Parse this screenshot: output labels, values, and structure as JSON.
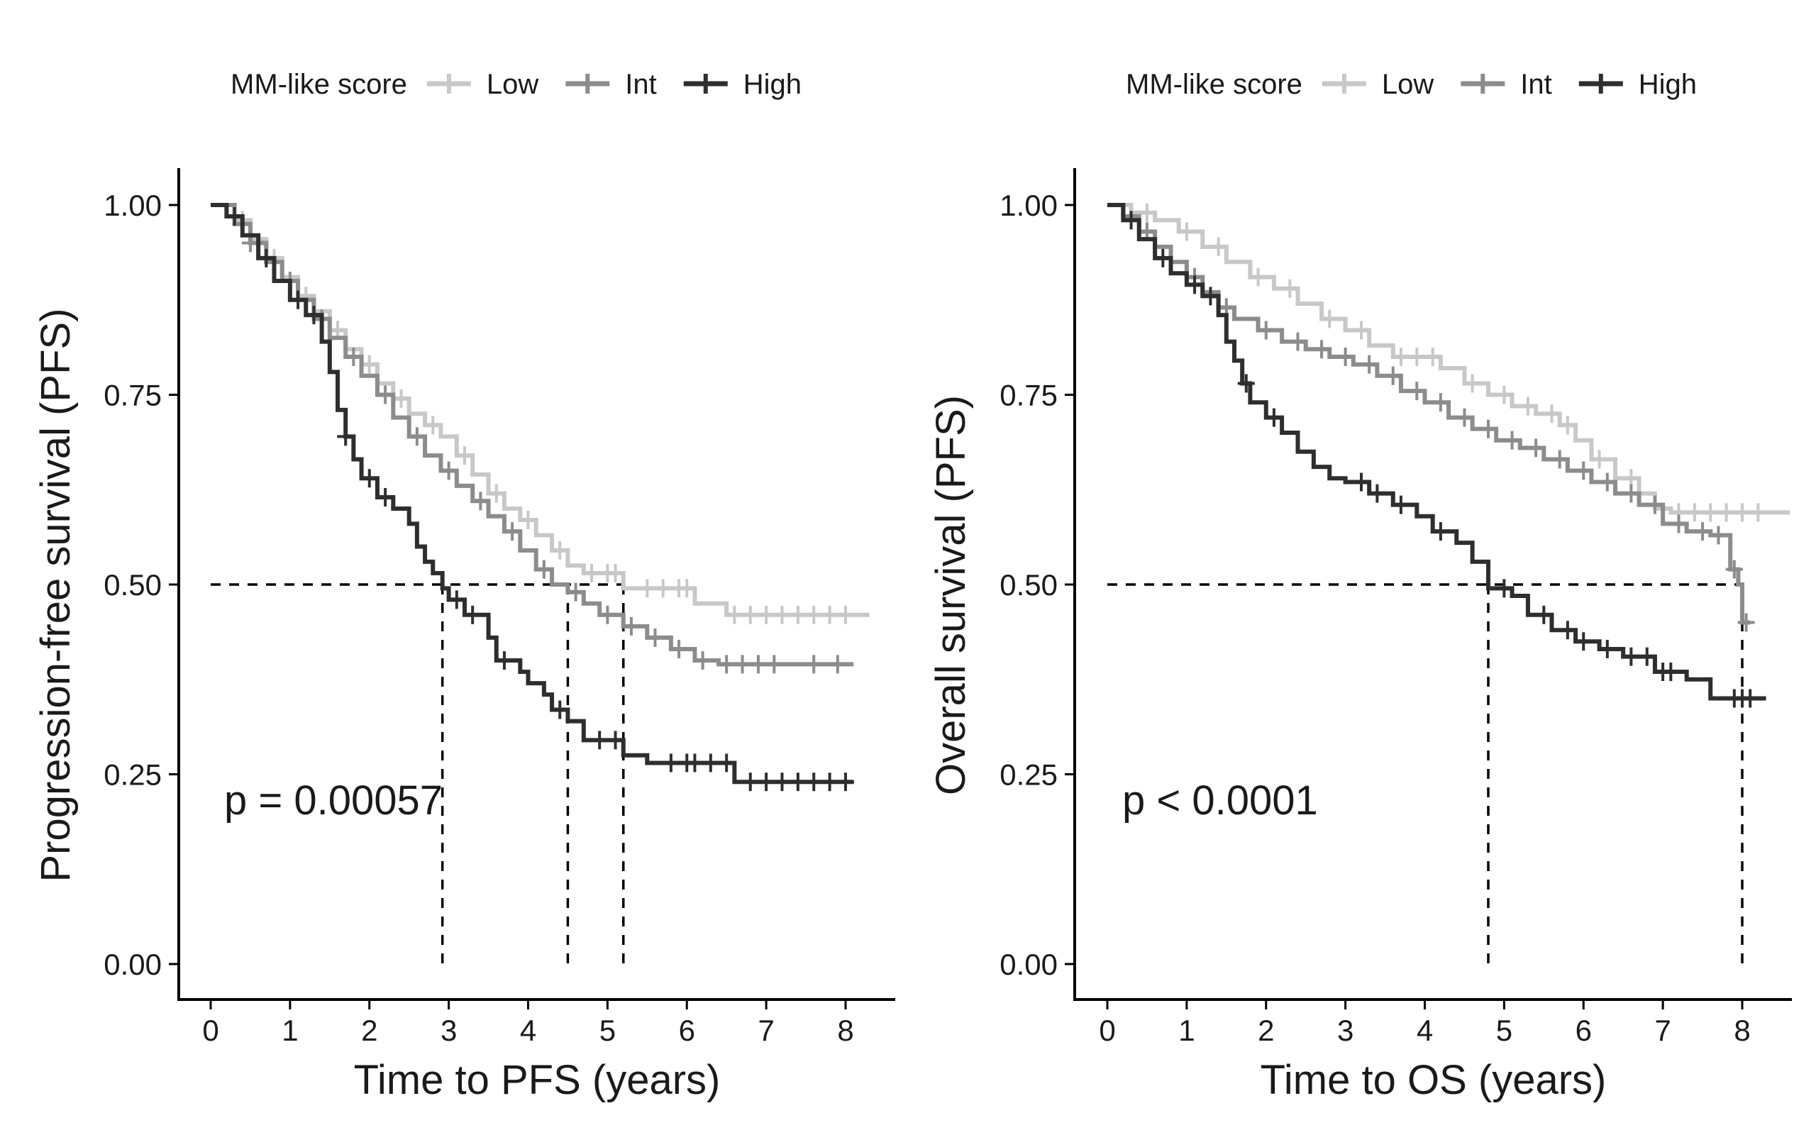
{
  "chart_data": [
    {
      "type": "line",
      "subtype": "kaplan-meier",
      "xlabel": "Time to PFS (years)",
      "ylabel": "Progression-free survival (PFS)",
      "xlim": [
        -0.4,
        8.6
      ],
      "ylim": [
        -0.05,
        1.05
      ],
      "xticks": [
        "0",
        "1",
        "2",
        "3",
        "4",
        "5",
        "6",
        "7",
        "8"
      ],
      "yticks": [
        "0.00",
        "0.25",
        "0.50",
        "0.75",
        "1.00"
      ],
      "grid": false,
      "legend_position": "top",
      "legend_title": "MM-like score",
      "annotation": "p = 0.00057",
      "median_survival": [
        2.92,
        4.5,
        5.2
      ],
      "series": [
        {
          "name": "Low",
          "color": "#c8c8c8",
          "steps": [
            [
              0,
              1.0
            ],
            [
              0.3,
              0.98
            ],
            [
              0.5,
              0.955
            ],
            [
              0.7,
              0.93
            ],
            [
              0.9,
              0.905
            ],
            [
              1.1,
              0.88
            ],
            [
              1.3,
              0.86
            ],
            [
              1.5,
              0.835
            ],
            [
              1.7,
              0.81
            ],
            [
              1.9,
              0.79
            ],
            [
              2.1,
              0.765
            ],
            [
              2.3,
              0.745
            ],
            [
              2.5,
              0.725
            ],
            [
              2.7,
              0.71
            ],
            [
              2.9,
              0.695
            ],
            [
              3.1,
              0.67
            ],
            [
              3.3,
              0.645
            ],
            [
              3.5,
              0.62
            ],
            [
              3.7,
              0.6
            ],
            [
              3.9,
              0.585
            ],
            [
              4.1,
              0.565
            ],
            [
              4.3,
              0.545
            ],
            [
              4.5,
              0.525
            ],
            [
              4.7,
              0.515
            ],
            [
              5.2,
              0.495
            ],
            [
              6.1,
              0.475
            ],
            [
              6.5,
              0.46
            ],
            [
              8.3,
              0.46
            ]
          ],
          "censor_times": [
            0.4,
            0.8,
            1.2,
            1.6,
            2.0,
            2.4,
            2.8,
            3.2,
            3.6,
            4.0,
            4.4,
            4.8,
            5.0,
            5.1,
            5.5,
            5.7,
            5.9,
            6.0,
            6.6,
            6.8,
            7.0,
            7.2,
            7.4,
            7.6,
            7.8,
            8.0
          ]
        },
        {
          "name": "Int",
          "color": "#8c8c8c",
          "steps": [
            [
              0,
              1.0
            ],
            [
              0.3,
              0.975
            ],
            [
              0.5,
              0.95
            ],
            [
              0.7,
              0.925
            ],
            [
              0.9,
              0.9
            ],
            [
              1.1,
              0.875
            ],
            [
              1.3,
              0.85
            ],
            [
              1.5,
              0.825
            ],
            [
              1.7,
              0.8
            ],
            [
              1.9,
              0.775
            ],
            [
              2.1,
              0.75
            ],
            [
              2.3,
              0.72
            ],
            [
              2.5,
              0.695
            ],
            [
              2.7,
              0.67
            ],
            [
              2.9,
              0.65
            ],
            [
              3.1,
              0.63
            ],
            [
              3.3,
              0.61
            ],
            [
              3.5,
              0.59
            ],
            [
              3.7,
              0.57
            ],
            [
              3.9,
              0.545
            ],
            [
              4.1,
              0.52
            ],
            [
              4.3,
              0.5
            ],
            [
              4.5,
              0.49
            ],
            [
              4.7,
              0.475
            ],
            [
              4.9,
              0.46
            ],
            [
              5.2,
              0.445
            ],
            [
              5.5,
              0.43
            ],
            [
              5.8,
              0.415
            ],
            [
              6.1,
              0.4
            ],
            [
              6.4,
              0.395
            ],
            [
              8.1,
              0.395
            ]
          ],
          "censor_times": [
            0.5,
            1.0,
            1.4,
            1.8,
            2.2,
            2.6,
            3.0,
            3.4,
            3.8,
            4.2,
            4.6,
            5.0,
            5.3,
            5.6,
            5.9,
            6.2,
            6.5,
            6.7,
            6.9,
            7.1,
            7.6,
            7.9
          ]
        },
        {
          "name": "High",
          "color": "#2e2e2e",
          "steps": [
            [
              0,
              1.0
            ],
            [
              0.2,
              0.985
            ],
            [
              0.4,
              0.96
            ],
            [
              0.6,
              0.93
            ],
            [
              0.8,
              0.9
            ],
            [
              1.0,
              0.875
            ],
            [
              1.2,
              0.855
            ],
            [
              1.4,
              0.82
            ],
            [
              1.5,
              0.78
            ],
            [
              1.6,
              0.73
            ],
            [
              1.7,
              0.695
            ],
            [
              1.8,
              0.665
            ],
            [
              1.9,
              0.64
            ],
            [
              2.1,
              0.615
            ],
            [
              2.3,
              0.6
            ],
            [
              2.5,
              0.58
            ],
            [
              2.6,
              0.55
            ],
            [
              2.7,
              0.53
            ],
            [
              2.8,
              0.515
            ],
            [
              2.92,
              0.495
            ],
            [
              3.0,
              0.48
            ],
            [
              3.2,
              0.46
            ],
            [
              3.5,
              0.43
            ],
            [
              3.6,
              0.4
            ],
            [
              3.9,
              0.385
            ],
            [
              4.0,
              0.37
            ],
            [
              4.2,
              0.355
            ],
            [
              4.3,
              0.335
            ],
            [
              4.5,
              0.32
            ],
            [
              4.7,
              0.295
            ],
            [
              5.2,
              0.275
            ],
            [
              5.5,
              0.265
            ],
            [
              6.6,
              0.24
            ],
            [
              8.1,
              0.24
            ]
          ],
          "censor_times": [
            0.3,
            0.7,
            1.1,
            1.3,
            1.7,
            2.0,
            2.2,
            3.1,
            3.3,
            3.7,
            4.4,
            4.9,
            5.1,
            5.8,
            6.0,
            6.1,
            6.3,
            6.5,
            6.8,
            7.0,
            7.2,
            7.4,
            7.6,
            7.8,
            8.0
          ]
        }
      ]
    },
    {
      "type": "line",
      "subtype": "kaplan-meier",
      "xlabel": "Time to OS (years)",
      "ylabel": "Overall survival (PFS)",
      "xlim": [
        -0.4,
        8.6
      ],
      "ylim": [
        -0.05,
        1.05
      ],
      "xticks": [
        "0",
        "1",
        "2",
        "3",
        "4",
        "5",
        "6",
        "7",
        "8"
      ],
      "yticks": [
        "0.00",
        "0.25",
        "0.50",
        "0.75",
        "1.00"
      ],
      "grid": false,
      "legend_position": "top",
      "legend_title": "MM-like score",
      "annotation": "p < 0.0001",
      "median_survival": [
        4.8,
        8.0
      ],
      "series": [
        {
          "name": "Low",
          "color": "#c8c8c8",
          "steps": [
            [
              0,
              1.0
            ],
            [
              0.3,
              0.99
            ],
            [
              0.6,
              0.98
            ],
            [
              0.9,
              0.965
            ],
            [
              1.2,
              0.945
            ],
            [
              1.5,
              0.925
            ],
            [
              1.8,
              0.905
            ],
            [
              2.1,
              0.89
            ],
            [
              2.4,
              0.87
            ],
            [
              2.7,
              0.85
            ],
            [
              3.0,
              0.835
            ],
            [
              3.3,
              0.815
            ],
            [
              3.6,
              0.8
            ],
            [
              4.2,
              0.785
            ],
            [
              4.5,
              0.765
            ],
            [
              4.8,
              0.75
            ],
            [
              5.1,
              0.735
            ],
            [
              5.4,
              0.725
            ],
            [
              5.7,
              0.71
            ],
            [
              5.9,
              0.69
            ],
            [
              6.1,
              0.665
            ],
            [
              6.4,
              0.64
            ],
            [
              6.7,
              0.62
            ],
            [
              6.9,
              0.6
            ],
            [
              7.1,
              0.595
            ],
            [
              8.6,
              0.595
            ]
          ],
          "censor_times": [
            0.5,
            1.0,
            1.4,
            1.9,
            2.3,
            2.8,
            3.2,
            3.7,
            3.9,
            4.1,
            4.6,
            5.0,
            5.3,
            5.6,
            5.8,
            6.2,
            6.6,
            7.2,
            7.4,
            7.6,
            7.8,
            8.0,
            8.2
          ]
        },
        {
          "name": "Int",
          "color": "#8c8c8c",
          "steps": [
            [
              0,
              1.0
            ],
            [
              0.2,
              0.985
            ],
            [
              0.4,
              0.965
            ],
            [
              0.6,
              0.945
            ],
            [
              0.8,
              0.925
            ],
            [
              1.0,
              0.905
            ],
            [
              1.2,
              0.885
            ],
            [
              1.4,
              0.865
            ],
            [
              1.6,
              0.85
            ],
            [
              1.9,
              0.835
            ],
            [
              2.2,
              0.82
            ],
            [
              2.5,
              0.81
            ],
            [
              2.8,
              0.8
            ],
            [
              3.1,
              0.79
            ],
            [
              3.4,
              0.775
            ],
            [
              3.7,
              0.755
            ],
            [
              4.0,
              0.74
            ],
            [
              4.3,
              0.72
            ],
            [
              4.6,
              0.705
            ],
            [
              4.9,
              0.69
            ],
            [
              5.2,
              0.68
            ],
            [
              5.5,
              0.665
            ],
            [
              5.8,
              0.65
            ],
            [
              6.1,
              0.635
            ],
            [
              6.4,
              0.62
            ],
            [
              6.7,
              0.605
            ],
            [
              7.0,
              0.58
            ],
            [
              7.3,
              0.57
            ],
            [
              7.6,
              0.565
            ],
            [
              7.85,
              0.52
            ],
            [
              7.95,
              0.5
            ],
            [
              8.0,
              0.45
            ],
            [
              8.1,
              0.45
            ]
          ],
          "censor_times": [
            0.5,
            1.1,
            1.5,
            2.0,
            2.4,
            2.7,
            3.0,
            3.3,
            3.6,
            3.9,
            4.2,
            4.5,
            4.8,
            5.1,
            5.4,
            5.7,
            6.0,
            6.3,
            6.6,
            6.9,
            7.2,
            7.5,
            7.7,
            7.9,
            8.05
          ]
        },
        {
          "name": "High",
          "color": "#2e2e2e",
          "steps": [
            [
              0,
              1.0
            ],
            [
              0.2,
              0.98
            ],
            [
              0.4,
              0.955
            ],
            [
              0.6,
              0.93
            ],
            [
              0.8,
              0.91
            ],
            [
              1.0,
              0.895
            ],
            [
              1.2,
              0.88
            ],
            [
              1.4,
              0.855
            ],
            [
              1.5,
              0.82
            ],
            [
              1.6,
              0.795
            ],
            [
              1.7,
              0.765
            ],
            [
              1.8,
              0.74
            ],
            [
              2.0,
              0.72
            ],
            [
              2.2,
              0.7
            ],
            [
              2.4,
              0.675
            ],
            [
              2.6,
              0.655
            ],
            [
              2.8,
              0.64
            ],
            [
              3.0,
              0.635
            ],
            [
              3.3,
              0.62
            ],
            [
              3.6,
              0.605
            ],
            [
              3.9,
              0.59
            ],
            [
              4.1,
              0.57
            ],
            [
              4.4,
              0.555
            ],
            [
              4.6,
              0.53
            ],
            [
              4.8,
              0.495
            ],
            [
              5.1,
              0.485
            ],
            [
              5.3,
              0.46
            ],
            [
              5.6,
              0.44
            ],
            [
              5.9,
              0.425
            ],
            [
              6.2,
              0.415
            ],
            [
              6.5,
              0.405
            ],
            [
              6.9,
              0.385
            ],
            [
              7.3,
              0.375
            ],
            [
              7.6,
              0.35
            ],
            [
              8.3,
              0.35
            ]
          ],
          "censor_times": [
            0.3,
            0.7,
            1.1,
            1.3,
            1.75,
            2.1,
            3.2,
            3.4,
            3.7,
            4.2,
            5.0,
            5.5,
            5.8,
            6.0,
            6.3,
            6.6,
            6.8,
            7.0,
            7.1,
            7.9,
            8.0,
            8.1
          ]
        }
      ]
    }
  ]
}
